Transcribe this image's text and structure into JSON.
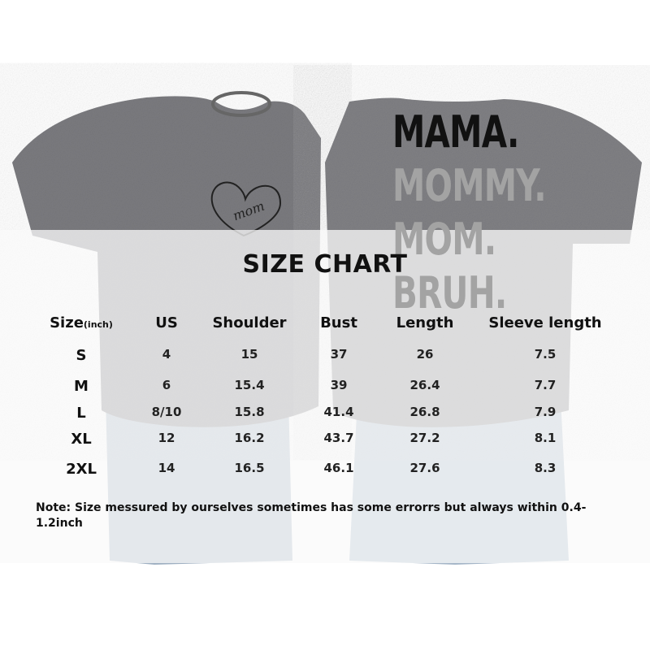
{
  "product": {
    "front_print": "mom",
    "back_print": [
      "MAMA.",
      "MOMMY.",
      "MOM.",
      "BRUH."
    ],
    "shirt_color": "#7b7b7f"
  },
  "chart": {
    "title": "SIZE CHART",
    "headers": {
      "size": "Size",
      "size_unit": "(inch)",
      "us": "US",
      "shoulder": "Shoulder",
      "bust": "Bust",
      "length": "Length",
      "sleeve": "Sleeve length"
    },
    "rows": [
      {
        "size": "S",
        "us": "4",
        "shoulder": "15",
        "bust": "37",
        "length": "26",
        "sleeve": "7.5"
      },
      {
        "size": "M",
        "us": "6",
        "shoulder": "15.4",
        "bust": "39",
        "length": "26.4",
        "sleeve": "7.7"
      },
      {
        "size": "L",
        "us": "8/10",
        "shoulder": "15.8",
        "bust": "41.4",
        "length": "26.8",
        "sleeve": "7.9"
      },
      {
        "size": "XL",
        "us": "12",
        "shoulder": "16.2",
        "bust": "43.7",
        "length": "27.2",
        "sleeve": "8.1"
      },
      {
        "size": "2XL",
        "us": "14",
        "shoulder": "16.5",
        "bust": "46.1",
        "length": "27.6",
        "sleeve": "8.3"
      }
    ],
    "note": "Note:  Size messured by ourselves sometimes has some errorrs but always within 0.4-1.2inch"
  }
}
